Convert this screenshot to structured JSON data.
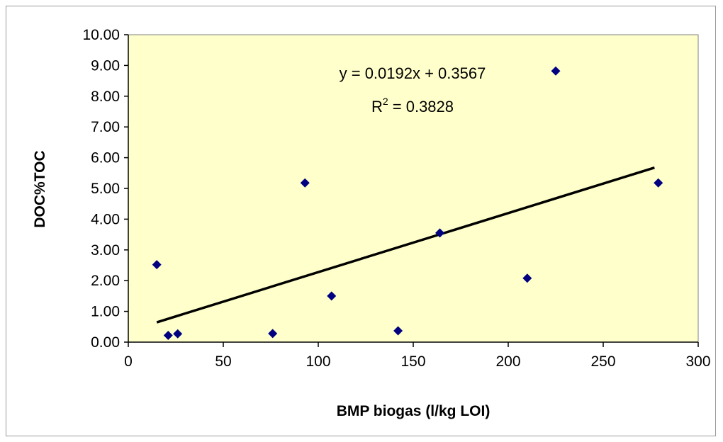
{
  "chart_data": {
    "type": "scatter",
    "title": "",
    "xlabel": "BMP biogas (l/kg LOI)",
    "ylabel": "DOC%TOC",
    "xlim": [
      0,
      300
    ],
    "ylim": [
      0,
      10
    ],
    "x_ticks": [
      "0",
      "50",
      "100",
      "150",
      "200",
      "250",
      "300"
    ],
    "y_ticks": [
      "0.00",
      "1.00",
      "2.00",
      "3.00",
      "4.00",
      "5.00",
      "6.00",
      "7.00",
      "8.00",
      "9.00",
      "10.00"
    ],
    "grid": false,
    "legend": "none",
    "plot_background": "#ffffcc",
    "marker_color": "#000080",
    "trendline_color": "#000000",
    "points": [
      {
        "x": 15,
        "y": 2.52
      },
      {
        "x": 21,
        "y": 0.22
      },
      {
        "x": 26,
        "y": 0.27
      },
      {
        "x": 76,
        "y": 0.28
      },
      {
        "x": 93,
        "y": 5.18
      },
      {
        "x": 107,
        "y": 1.5
      },
      {
        "x": 142,
        "y": 0.37
      },
      {
        "x": 164,
        "y": 3.55
      },
      {
        "x": 210,
        "y": 2.08
      },
      {
        "x": 225,
        "y": 8.82
      },
      {
        "x": 279,
        "y": 5.18
      }
    ],
    "trendline": {
      "slope": 0.0192,
      "intercept": 0.3567,
      "x_range": [
        15,
        277
      ],
      "equation_label": "y = 0.0192x + 0.3567",
      "r2_label_main": "R",
      "r2_label_sup": "2",
      "r2_label_value": " = 0.3828"
    }
  }
}
